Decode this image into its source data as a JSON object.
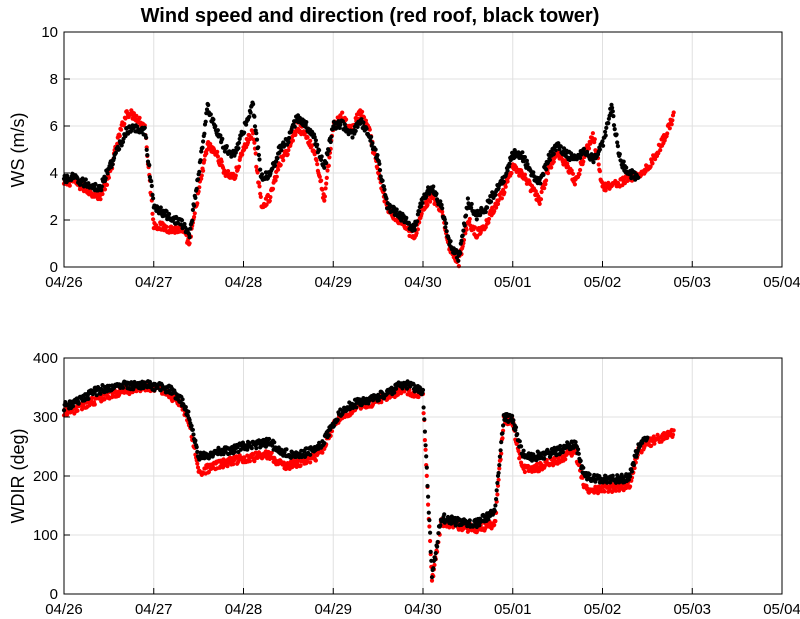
{
  "figure": {
    "title": "Wind speed and direction (red roof, black tower)"
  },
  "colors": {
    "roof": "#ff0000",
    "tower": "#000000",
    "grid": "#e0e0e0"
  },
  "chart_data": [
    {
      "type": "scatter",
      "ylabel": "WS (m/s)",
      "xlim": [
        "04/26",
        "05/04"
      ],
      "ylim": [
        0,
        10
      ],
      "x_ticks": [
        "04/26",
        "04/27",
        "04/28",
        "04/29",
        "04/30",
        "05/01",
        "05/02",
        "05/03",
        "05/04"
      ],
      "y_ticks": [
        "0",
        "2",
        "4",
        "6",
        "8",
        "10"
      ],
      "grid": true,
      "series": [
        {
          "key": "tower",
          "color": "#000000",
          "x_days": [
            0.0,
            0.1,
            0.2,
            0.3,
            0.4,
            0.5,
            0.6,
            0.7,
            0.8,
            0.9,
            1.0,
            1.1,
            1.2,
            1.3,
            1.4,
            1.5,
            1.6,
            1.7,
            1.8,
            1.9,
            2.0,
            2.1,
            2.2,
            2.3,
            2.4,
            2.5,
            2.6,
            2.7,
            2.8,
            2.9,
            3.0,
            3.1,
            3.2,
            3.3,
            3.4,
            3.5,
            3.6,
            3.7,
            3.8,
            3.9,
            4.0,
            4.1,
            4.2,
            4.3,
            4.4,
            4.5,
            4.6,
            4.7,
            4.8,
            4.9,
            5.0,
            5.1,
            5.2,
            5.3,
            5.4,
            5.5,
            5.6,
            5.7,
            5.8,
            5.9,
            6.0,
            6.1,
            6.2,
            6.3,
            6.4,
            6.5,
            6.6,
            6.7,
            6.8
          ],
          "y": [
            3.7,
            3.8,
            3.6,
            3.5,
            3.3,
            4.2,
            5.0,
            5.8,
            5.9,
            5.8,
            2.6,
            2.3,
            2.1,
            1.9,
            1.4,
            4.0,
            6.8,
            5.8,
            5.0,
            4.8,
            5.8,
            7.0,
            3.8,
            4.0,
            5.0,
            5.4,
            6.4,
            6.0,
            5.4,
            4.2,
            6.0,
            6.1,
            5.6,
            6.2,
            5.6,
            4.6,
            2.6,
            2.3,
            2.0,
            1.6,
            3.0,
            3.4,
            2.6,
            1.0,
            0.4,
            2.8,
            2.2,
            2.5,
            3.2,
            3.8,
            4.8,
            4.8,
            4.0,
            3.6,
            4.6,
            5.2,
            4.8,
            4.6,
            5.0,
            4.6,
            5.2,
            6.8,
            4.5,
            4.0,
            3.8,
            null,
            null,
            null,
            null
          ]
        },
        {
          "key": "roof",
          "color": "#ff0000",
          "x_days": [
            0.0,
            0.1,
            0.2,
            0.3,
            0.4,
            0.5,
            0.6,
            0.7,
            0.8,
            0.9,
            1.0,
            1.1,
            1.2,
            1.3,
            1.4,
            1.5,
            1.6,
            1.7,
            1.8,
            1.9,
            2.0,
            2.1,
            2.2,
            2.3,
            2.4,
            2.5,
            2.6,
            2.7,
            2.8,
            2.9,
            3.0,
            3.1,
            3.2,
            3.3,
            3.4,
            3.5,
            3.6,
            3.7,
            3.8,
            3.9,
            4.0,
            4.1,
            4.2,
            4.3,
            4.4,
            4.5,
            4.6,
            4.7,
            4.8,
            4.9,
            5.0,
            5.1,
            5.2,
            5.3,
            5.4,
            5.5,
            5.6,
            5.7,
            5.8,
            5.9,
            6.0,
            6.1,
            6.2,
            6.3,
            6.4,
            6.5,
            6.6,
            6.7,
            6.8
          ],
          "y": [
            3.5,
            3.7,
            3.4,
            3.2,
            3.0,
            3.8,
            5.4,
            6.6,
            6.4,
            6.0,
            1.8,
            1.7,
            1.6,
            1.6,
            1.0,
            3.2,
            5.2,
            4.8,
            4.0,
            3.8,
            5.0,
            5.8,
            2.6,
            3.0,
            4.4,
            5.0,
            6.0,
            5.6,
            4.8,
            2.8,
            6.0,
            6.4,
            5.8,
            6.6,
            5.8,
            4.0,
            2.5,
            2.1,
            1.8,
            1.2,
            2.5,
            3.0,
            2.4,
            0.8,
            0.2,
            2.0,
            1.4,
            1.8,
            2.6,
            3.2,
            4.2,
            4.0,
            3.4,
            2.8,
            4.2,
            4.8,
            4.4,
            3.6,
            4.8,
            5.6,
            3.4,
            3.5,
            3.6,
            3.8,
            3.9,
            4.2,
            4.8,
            5.6,
            6.5
          ]
        }
      ]
    },
    {
      "type": "scatter",
      "ylabel": "WDIR (deg)",
      "xlim": [
        "04/26",
        "05/04"
      ],
      "ylim": [
        0,
        400
      ],
      "x_ticks": [
        "04/26",
        "04/27",
        "04/28",
        "04/29",
        "04/30",
        "05/01",
        "05/02",
        "05/03",
        "05/04"
      ],
      "y_ticks": [
        "0",
        "100",
        "200",
        "300",
        "400"
      ],
      "grid": true,
      "series": [
        {
          "key": "tower",
          "color": "#000000",
          "x_days": [
            0.0,
            0.1,
            0.2,
            0.3,
            0.4,
            0.5,
            0.6,
            0.7,
            0.8,
            0.9,
            1.0,
            1.1,
            1.2,
            1.3,
            1.4,
            1.5,
            1.6,
            1.7,
            1.8,
            1.9,
            2.0,
            2.1,
            2.2,
            2.3,
            2.4,
            2.5,
            2.6,
            2.7,
            2.8,
            2.9,
            3.0,
            3.1,
            3.2,
            3.3,
            3.4,
            3.5,
            3.6,
            3.7,
            3.8,
            3.9,
            4.0,
            4.1,
            4.2,
            4.3,
            4.4,
            4.5,
            4.6,
            4.7,
            4.8,
            4.9,
            5.0,
            5.1,
            5.2,
            5.3,
            5.4,
            5.5,
            5.6,
            5.7,
            5.8,
            5.9,
            6.0,
            6.1,
            6.2,
            6.3,
            6.4,
            6.5,
            6.6,
            6.7,
            6.8
          ],
          "y": [
            318,
            322,
            330,
            340,
            346,
            350,
            352,
            354,
            354,
            355,
            352,
            350,
            345,
            330,
            300,
            232,
            236,
            240,
            242,
            245,
            250,
            252,
            255,
            258,
            240,
            238,
            235,
            240,
            245,
            260,
            290,
            310,
            320,
            325,
            330,
            335,
            340,
            350,
            355,
            350,
            345,
            30,
            130,
            125,
            122,
            120,
            120,
            130,
            140,
            300,
            295,
            240,
            232,
            235,
            238,
            242,
            250,
            255,
            200,
            198,
            195,
            196,
            195,
            198,
            250,
            265,
            null,
            null,
            null
          ]
        },
        {
          "key": "roof",
          "color": "#ff0000",
          "x_days": [
            0.0,
            0.1,
            0.2,
            0.3,
            0.4,
            0.5,
            0.6,
            0.7,
            0.8,
            0.9,
            1.0,
            1.1,
            1.2,
            1.3,
            1.4,
            1.5,
            1.6,
            1.7,
            1.8,
            1.9,
            2.0,
            2.1,
            2.2,
            2.3,
            2.4,
            2.5,
            2.6,
            2.7,
            2.8,
            2.9,
            3.0,
            3.1,
            3.2,
            3.3,
            3.4,
            3.5,
            3.6,
            3.7,
            3.8,
            3.9,
            4.0,
            4.1,
            4.2,
            4.3,
            4.4,
            4.5,
            4.6,
            4.7,
            4.8,
            4.9,
            5.0,
            5.1,
            5.2,
            5.3,
            5.4,
            5.5,
            5.6,
            5.7,
            5.8,
            5.9,
            6.0,
            6.1,
            6.2,
            6.3,
            6.4,
            6.5,
            6.6,
            6.7,
            6.8
          ],
          "y": [
            310,
            312,
            318,
            325,
            332,
            338,
            342,
            345,
            348,
            352,
            350,
            345,
            335,
            320,
            290,
            205,
            212,
            218,
            222,
            226,
            230,
            232,
            234,
            236,
            220,
            218,
            222,
            226,
            232,
            250,
            285,
            300,
            310,
            318,
            322,
            330,
            335,
            340,
            345,
            340,
            335,
            20,
            120,
            118,
            115,
            112,
            110,
            115,
            118,
            295,
            290,
            215,
            210,
            215,
            222,
            228,
            235,
            240,
            178,
            176,
            178,
            180,
            182,
            185,
            242,
            255,
            262,
            268,
            275
          ]
        }
      ]
    }
  ]
}
